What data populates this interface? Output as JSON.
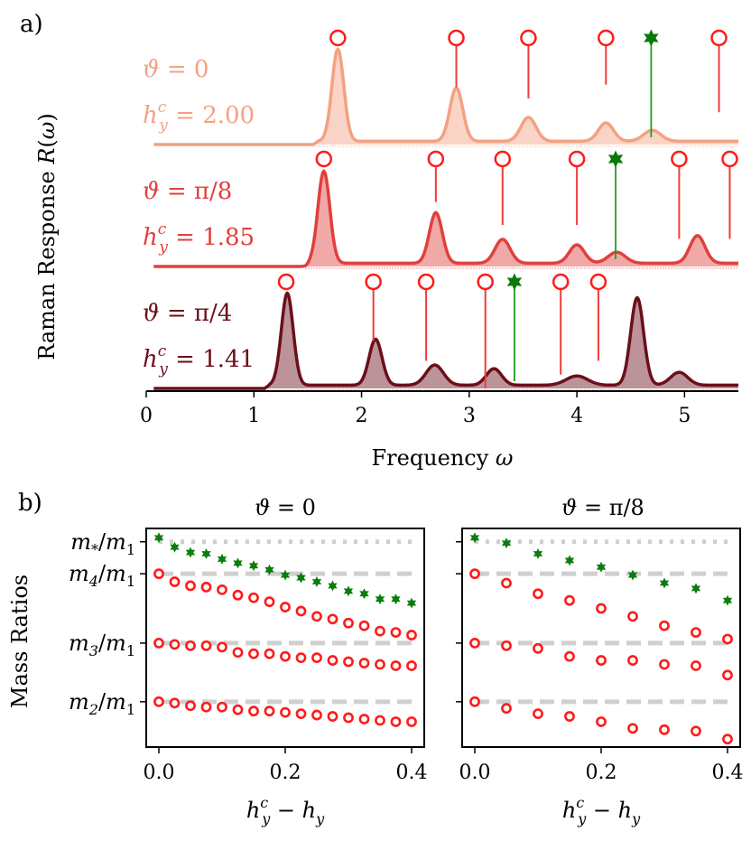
{
  "panel_labels": {
    "a": "a)",
    "b": "b)"
  },
  "chart_data": [
    {
      "type": "line",
      "id": "raman",
      "title": "",
      "xlabel": "Frequency ω",
      "ylabel": "Raman Response R(ω)",
      "xlim": [
        0,
        5.5
      ],
      "xticks": [
        0,
        1,
        2,
        3,
        4,
        5
      ],
      "tick_labels": [
        "0",
        "1",
        "2",
        "3",
        "4",
        "5"
      ],
      "series": [
        {
          "name": "ϑ = 0",
          "theta_label": "ϑ = 0",
          "h_label": "h_y^c = 2.00",
          "color": "#f4a182",
          "edge": 1.55,
          "peaks": [
            {
              "w": 1.78,
              "h": 1.0,
              "s": 0.055
            },
            {
              "w": 2.88,
              "h": 0.58,
              "s": 0.06
            },
            {
              "w": 3.55,
              "h": 0.26,
              "s": 0.07
            },
            {
              "w": 4.27,
              "h": 0.2,
              "s": 0.07
            },
            {
              "w": 4.7,
              "h": 0.12,
              "s": 0.08
            }
          ],
          "circles": [
            1.78,
            2.88,
            3.55,
            4.27,
            5.32
          ],
          "circle_stem_ends": [
            null,
            0.62,
            0.5,
            0.65,
            0.35
          ],
          "star": 4.69,
          "star_stem_end": 0.0
        },
        {
          "name": "ϑ = π/8",
          "theta_label": "ϑ = π/8",
          "h_label": "h_y^c = 1.85",
          "color": "#e0403d",
          "edge": 1.48,
          "peaks": [
            {
              "w": 1.65,
              "h": 1.0,
              "s": 0.055
            },
            {
              "w": 2.69,
              "h": 0.55,
              "s": 0.06
            },
            {
              "w": 3.31,
              "h": 0.26,
              "s": 0.07
            },
            {
              "w": 4.0,
              "h": 0.2,
              "s": 0.07
            },
            {
              "w": 4.37,
              "h": 0.12,
              "s": 0.08
            },
            {
              "w": 5.12,
              "h": 0.3,
              "s": 0.07
            }
          ],
          "circles": [
            1.65,
            2.69,
            3.31,
            4.0,
            4.95,
            5.42
          ],
          "circle_stem_ends": [
            null,
            0.7,
            0.45,
            0.45,
            0.3,
            0.3
          ],
          "star": 4.36,
          "star_stem_end": 0.0
        },
        {
          "name": "ϑ = π/4",
          "theta_label": "ϑ = π/4",
          "h_label": "h_y^c = 1.41",
          "color": "#6b0f1a",
          "edge": 1.1,
          "peaks": [
            {
              "w": 1.31,
              "h": 1.0,
              "s": 0.055
            },
            {
              "w": 2.13,
              "h": 0.5,
              "s": 0.06
            },
            {
              "w": 2.68,
              "h": 0.22,
              "s": 0.08
            },
            {
              "w": 3.23,
              "h": 0.18,
              "s": 0.07
            },
            {
              "w": 4.0,
              "h": 0.1,
              "s": 0.1
            },
            {
              "w": 4.56,
              "h": 0.95,
              "s": 0.06
            },
            {
              "w": 4.95,
              "h": 0.14,
              "s": 0.08
            }
          ],
          "circles": [
            1.3,
            2.11,
            2.6,
            3.15,
            3.85,
            4.2
          ],
          "circle_stem_ends": [
            null,
            0.52,
            0.3,
            0.0,
            0.15,
            0.3
          ],
          "star": 3.42,
          "star_stem_end": 0.0
        }
      ]
    },
    {
      "type": "scatter",
      "id": "mass-theta-0",
      "title": "ϑ = 0",
      "xlabel": "h_y^c − h_y",
      "ylabel": "Mass Ratios",
      "xlim": [
        -0.02,
        0.42
      ],
      "xticks": [
        0.0,
        0.2,
        0.4
      ],
      "tick_labels": [
        "0.0",
        "0.2",
        "0.4"
      ],
      "y_levels": {
        "m*/m1": 1.0,
        "m4/m1": 0.88,
        "m3/m1": 0.62,
        "m2/m1": 0.4
      },
      "ylim": [
        0.23,
        1.05
      ],
      "x": [
        0.0,
        0.025,
        0.05,
        0.075,
        0.1,
        0.125,
        0.15,
        0.175,
        0.2,
        0.225,
        0.25,
        0.275,
        0.3,
        0.325,
        0.35,
        0.375,
        0.4
      ],
      "series": [
        {
          "name": "m*",
          "marker": "star",
          "values": [
            1.015,
            0.98,
            0.96,
            0.955,
            0.935,
            0.92,
            0.91,
            0.895,
            0.875,
            0.865,
            0.85,
            0.835,
            0.815,
            0.805,
            0.785,
            0.785,
            0.77
          ]
        },
        {
          "name": "m4",
          "marker": "circle",
          "values": [
            0.88,
            0.85,
            0.835,
            0.83,
            0.82,
            0.8,
            0.79,
            0.775,
            0.755,
            0.74,
            0.72,
            0.71,
            0.695,
            0.685,
            0.665,
            0.66,
            0.65
          ]
        },
        {
          "name": "m3",
          "marker": "circle",
          "values": [
            0.62,
            0.615,
            0.61,
            0.61,
            0.605,
            0.585,
            0.58,
            0.58,
            0.57,
            0.565,
            0.565,
            0.555,
            0.55,
            0.545,
            0.54,
            0.535,
            0.535
          ]
        },
        {
          "name": "m2",
          "marker": "circle",
          "values": [
            0.4,
            0.395,
            0.385,
            0.38,
            0.38,
            0.37,
            0.365,
            0.365,
            0.36,
            0.355,
            0.35,
            0.345,
            0.34,
            0.335,
            0.33,
            0.325,
            0.325
          ]
        }
      ]
    },
    {
      "type": "scatter",
      "id": "mass-theta-pi8",
      "title": "ϑ =  π/8",
      "xlabel": "h_y^c − h_y",
      "ylabel": "",
      "xlim": [
        -0.02,
        0.42
      ],
      "xticks": [
        0.0,
        0.2,
        0.4
      ],
      "tick_labels": [
        "0.0",
        "0.2",
        "0.4"
      ],
      "y_levels": {
        "m*/m1": 1.0,
        "m4/m1": 0.88,
        "m3/m1": 0.62,
        "m2/m1": 0.4
      },
      "ylim": [
        0.23,
        1.05
      ],
      "x": [
        0.0,
        0.05,
        0.1,
        0.15,
        0.2,
        0.25,
        0.3,
        0.35,
        0.4
      ],
      "series": [
        {
          "name": "m*",
          "marker": "star",
          "values": [
            1.015,
            0.995,
            0.955,
            0.93,
            0.905,
            0.875,
            0.845,
            0.825,
            0.78
          ]
        },
        {
          "name": "m4",
          "marker": "circle",
          "values": [
            0.88,
            0.845,
            0.805,
            0.78,
            0.75,
            0.72,
            0.685,
            0.66,
            0.635
          ]
        },
        {
          "name": "m3",
          "marker": "circle",
          "values": [
            0.62,
            0.61,
            0.6,
            0.57,
            0.555,
            0.555,
            0.54,
            0.535,
            0.5
          ]
        },
        {
          "name": "m2",
          "marker": "circle",
          "values": [
            0.4,
            0.375,
            0.355,
            0.345,
            0.325,
            0.3,
            0.295,
            0.29,
            0.26
          ]
        }
      ]
    }
  ]
}
